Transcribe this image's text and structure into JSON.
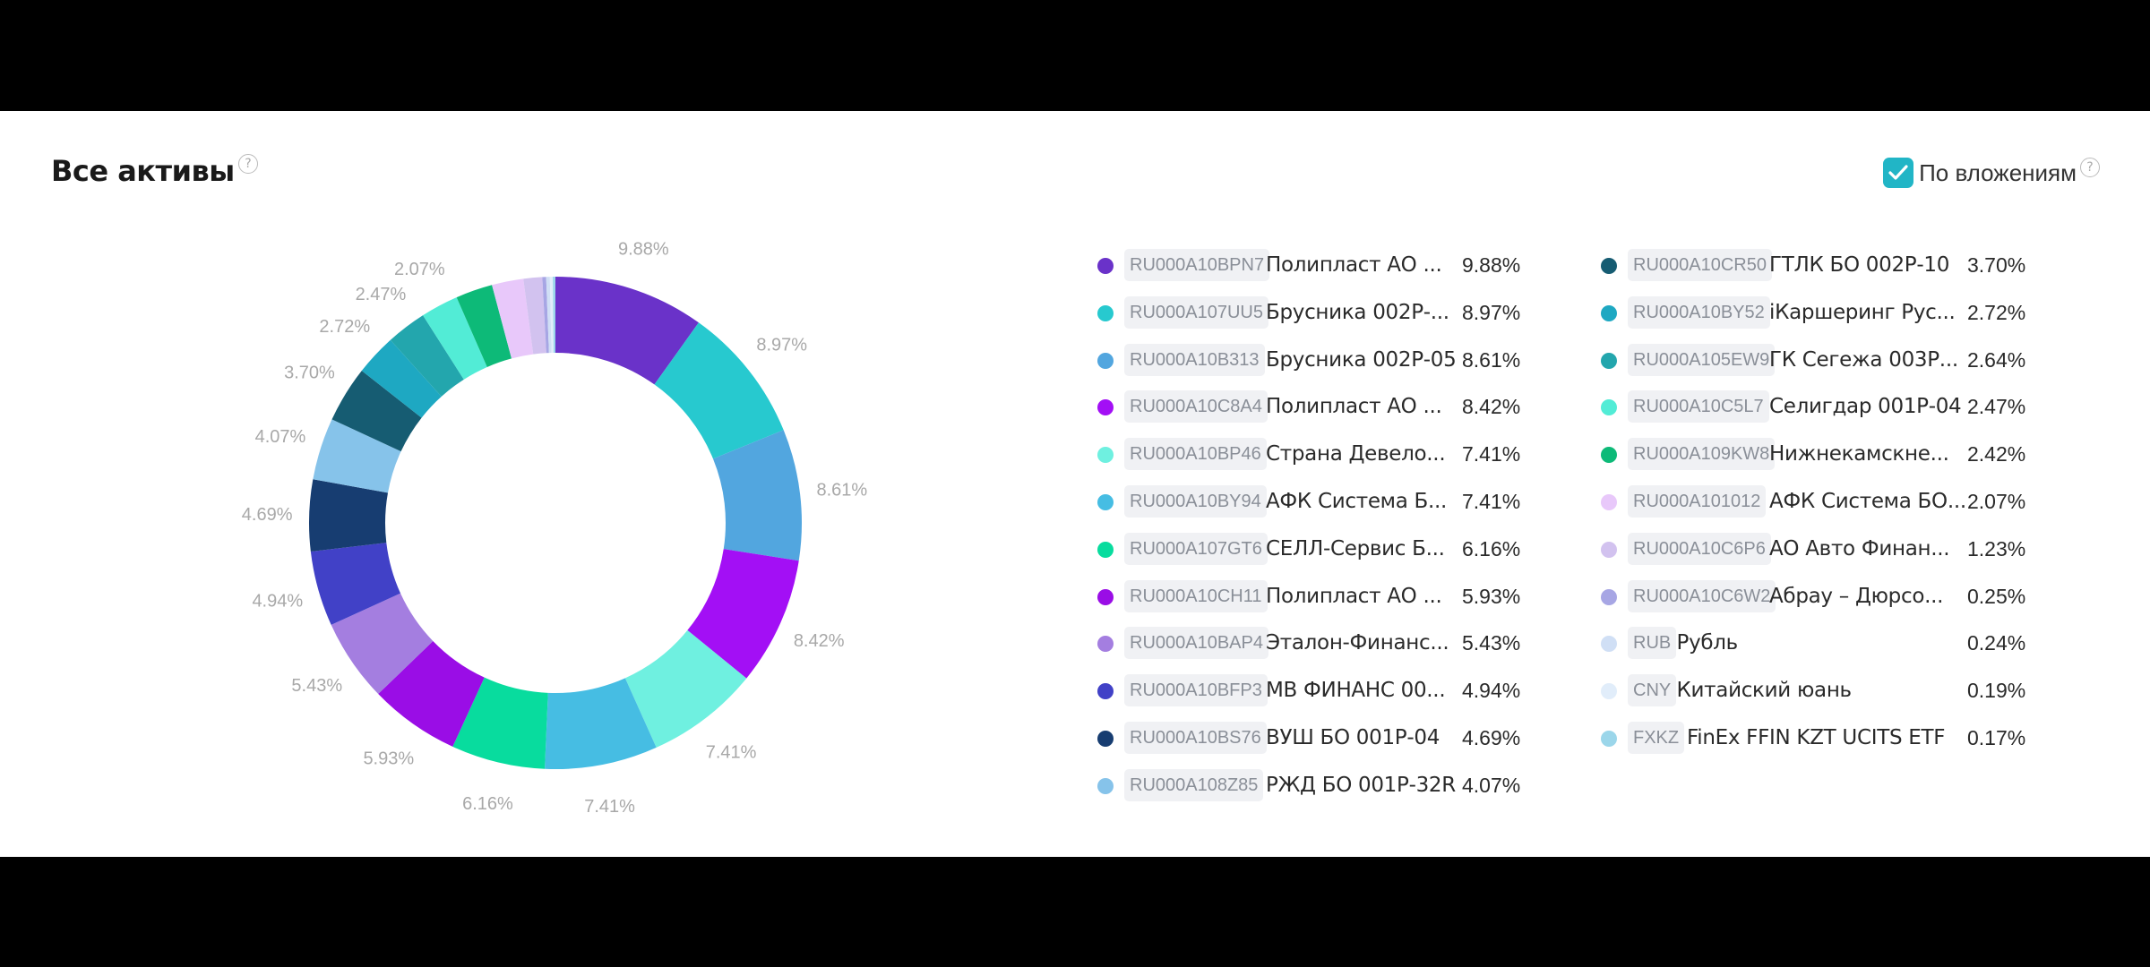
{
  "header": {
    "title": "Все активы",
    "help": "?",
    "toggle_label": "По вложениям",
    "toggle_help": "?"
  },
  "chart_data": {
    "type": "pie",
    "style": "donut",
    "slice_labels": [
      "9.88%",
      "8.97%",
      "8.61%",
      "8.42%",
      "7.41%",
      "7.41%",
      "6.16%",
      "5.93%",
      "5.43%",
      "4.94%",
      "4.69%",
      "4.07%",
      "3.70%",
      "2.72%",
      "2.47%",
      "2.07%"
    ],
    "slices": [
      {
        "isin": "RU000A10BPN7",
        "name": "Полипласт АО ...",
        "pct": "9.88%",
        "value": 9.88,
        "color": "#6a32c9"
      },
      {
        "isin": "RU000A107UU5",
        "name": "Брусника 002Р-...",
        "pct": "8.97%",
        "value": 8.97,
        "color": "#27c9cf"
      },
      {
        "isin": "RU000A10B313",
        "name": "Брусника 002Р-05",
        "pct": "8.61%",
        "value": 8.61,
        "color": "#52a6df"
      },
      {
        "isin": "RU000A10C8A4",
        "name": "Полипласт АО ...",
        "pct": "8.42%",
        "value": 8.42,
        "color": "#a30ff5"
      },
      {
        "isin": "RU000A10BP46",
        "name": "Страна Девело...",
        "pct": "7.41%",
        "value": 7.41,
        "color": "#6ff0e0"
      },
      {
        "isin": "RU000A10BY94",
        "name": "АФК Система Б...",
        "pct": "7.41%",
        "value": 7.41,
        "color": "#46bde3"
      },
      {
        "isin": "RU000A107GT6",
        "name": "СЕЛЛ-Сервис Б...",
        "pct": "6.16%",
        "value": 6.16,
        "color": "#08dc9e"
      },
      {
        "isin": "RU000A10CH11",
        "name": "Полипласт АО ...",
        "pct": "5.93%",
        "value": 5.93,
        "color": "#9a0de6"
      },
      {
        "isin": "RU000A10BAP4",
        "name": "Эталон-Финанс...",
        "pct": "5.43%",
        "value": 5.43,
        "color": "#a47ee0"
      },
      {
        "isin": "RU000A10BFP3",
        "name": "МВ ФИНАНС 00...",
        "pct": "4.94%",
        "value": 4.94,
        "color": "#4141c7"
      },
      {
        "isin": "RU000A10BS76",
        "name": "ВУШ БО 001Р-04",
        "pct": "4.69%",
        "value": 4.69,
        "color": "#173d71"
      },
      {
        "isin": "RU000A108Z85",
        "name": "РЖД БО 001Р-32R",
        "pct": "4.07%",
        "value": 4.07,
        "color": "#86c3ea"
      },
      {
        "isin": "RU000A10CR50",
        "name": "ГТЛК БО 002Р-10",
        "pct": "3.70%",
        "value": 3.7,
        "color": "#165c72"
      },
      {
        "isin": "RU000A10BY52",
        "name": "iКаршеринг Рус...",
        "pct": "2.72%",
        "value": 2.72,
        "color": "#1ea8c2"
      },
      {
        "isin": "RU000A105EW9",
        "name": "ГК Сегежа 003Р...",
        "pct": "2.64%",
        "value": 2.64,
        "color": "#23a6ad"
      },
      {
        "isin": "RU000A10C5L7",
        "name": "Селигдар 001Р-04",
        "pct": "2.47%",
        "value": 2.47,
        "color": "#52ecd6"
      },
      {
        "isin": "RU000A109KW8",
        "name": "Нижнекамскне...",
        "pct": "2.42%",
        "value": 2.42,
        "color": "#0dba78"
      },
      {
        "isin": "RU000A101012",
        "name": "АФК Система БО...",
        "pct": "2.07%",
        "value": 2.07,
        "color": "#e8c8fa"
      },
      {
        "isin": "RU000A10C6P6",
        "name": "АО Авто Финан...",
        "pct": "1.23%",
        "value": 1.23,
        "color": "#d2c2ef"
      },
      {
        "isin": "RU000A10C6W2",
        "name": "Абрау – Дюрсо...",
        "pct": "0.25%",
        "value": 0.25,
        "color": "#a7a6e4"
      },
      {
        "isin": "RUB",
        "name": "Рубль",
        "pct": "0.24%",
        "value": 0.24,
        "color": "#d0dff5"
      },
      {
        "isin": "CNY",
        "name": "Китайский юань",
        "pct": "0.19%",
        "value": 0.19,
        "color": "#e1edfa"
      },
      {
        "isin": "FXKZ",
        "name": "FinEx FFIN KZT UCITS ETF",
        "pct": "0.17%",
        "value": 0.17,
        "color": "#9bd6ea"
      }
    ]
  }
}
